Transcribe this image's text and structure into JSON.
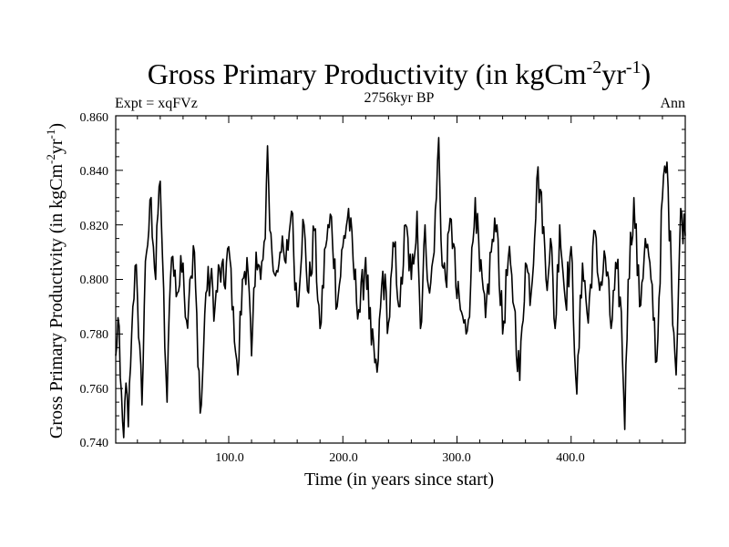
{
  "chart_data": {
    "type": "line",
    "title": "Gross Primary Productivity (in kgCm",
    "title_sup1": "-2",
    "title_mid": "yr",
    "title_sup2": "-1",
    "title_end": ")",
    "left_label": "Expt = xqFVz",
    "center_label": "2756kyr BP",
    "right_label": "Ann",
    "xlabel": "Time (in years since start)",
    "ylabel_main": "Gross Primary Productivity (in kgCm",
    "ylabel_sup1": "-2",
    "ylabel_mid": "yr",
    "ylabel_sup2": "-1",
    "ylabel_end": ")",
    "xlim": [
      1,
      500
    ],
    "ylim": [
      0.74,
      0.86
    ],
    "xticks": [
      100,
      200,
      300,
      400
    ],
    "xtick_labels": [
      "100.0",
      "200.0",
      "300.0",
      "400.0"
    ],
    "yticks": [
      0.74,
      0.76,
      0.78,
      0.8,
      0.82,
      0.84,
      0.86
    ],
    "ytick_labels": [
      "0.740",
      "0.760",
      "0.780",
      "0.800",
      "0.820",
      "0.840",
      "0.860"
    ],
    "line_color": "#000000",
    "keypoints": [
      [
        1,
        0.772
      ],
      [
        3,
        0.786
      ],
      [
        5,
        0.764
      ],
      [
        7,
        0.748
      ],
      [
        8,
        0.742
      ],
      [
        10,
        0.762
      ],
      [
        12,
        0.746
      ],
      [
        14,
        0.768
      ],
      [
        16,
        0.79
      ],
      [
        18,
        0.805
      ],
      [
        20,
        0.794
      ],
      [
        22,
        0.776
      ],
      [
        24,
        0.754
      ],
      [
        26,
        0.79
      ],
      [
        28,
        0.81
      ],
      [
        30,
        0.818
      ],
      [
        32,
        0.83
      ],
      [
        34,
        0.812
      ],
      [
        36,
        0.8
      ],
      [
        38,
        0.824
      ],
      [
        40,
        0.836
      ],
      [
        42,
        0.808
      ],
      [
        44,
        0.775
      ],
      [
        46,
        0.755
      ],
      [
        48,
        0.79
      ],
      [
        50,
        0.808
      ],
      [
        55,
        0.795
      ],
      [
        60,
        0.806
      ],
      [
        63,
        0.785
      ],
      [
        66,
        0.8
      ],
      [
        70,
        0.81
      ],
      [
        73,
        0.768
      ],
      [
        76,
        0.754
      ],
      [
        80,
        0.795
      ],
      [
        84,
        0.8
      ],
      [
        88,
        0.79
      ],
      [
        92,
        0.804
      ],
      [
        96,
        0.798
      ],
      [
        100,
        0.812
      ],
      [
        104,
        0.79
      ],
      [
        108,
        0.765
      ],
      [
        112,
        0.8
      ],
      [
        116,
        0.808
      ],
      [
        120,
        0.772
      ],
      [
        124,
        0.81
      ],
      [
        128,
        0.8
      ],
      [
        132,
        0.815
      ],
      [
        134,
        0.849
      ],
      [
        136,
        0.818
      ],
      [
        140,
        0.802
      ],
      [
        145,
        0.81
      ],
      [
        150,
        0.806
      ],
      [
        155,
        0.825
      ],
      [
        160,
        0.79
      ],
      [
        165,
        0.822
      ],
      [
        170,
        0.795
      ],
      [
        175,
        0.818
      ],
      [
        180,
        0.782
      ],
      [
        185,
        0.812
      ],
      [
        190,
        0.823
      ],
      [
        195,
        0.79
      ],
      [
        200,
        0.812
      ],
      [
        205,
        0.826
      ],
      [
        210,
        0.8
      ],
      [
        215,
        0.788
      ],
      [
        220,
        0.808
      ],
      [
        225,
        0.776
      ],
      [
        230,
        0.766
      ],
      [
        235,
        0.803
      ],
      [
        240,
        0.784
      ],
      [
        245,
        0.812
      ],
      [
        250,
        0.79
      ],
      [
        255,
        0.82
      ],
      [
        260,
        0.8
      ],
      [
        265,
        0.825
      ],
      [
        268,
        0.782
      ],
      [
        272,
        0.82
      ],
      [
        276,
        0.795
      ],
      [
        280,
        0.81
      ],
      [
        284,
        0.852
      ],
      [
        287,
        0.805
      ],
      [
        290,
        0.8
      ],
      [
        295,
        0.822
      ],
      [
        300,
        0.793
      ],
      [
        304,
        0.788
      ],
      [
        308,
        0.78
      ],
      [
        312,
        0.798
      ],
      [
        316,
        0.83
      ],
      [
        320,
        0.803
      ],
      [
        325,
        0.786
      ],
      [
        330,
        0.81
      ],
      [
        335,
        0.82
      ],
      [
        340,
        0.78
      ],
      [
        345,
        0.808
      ],
      [
        350,
        0.79
      ],
      [
        355,
        0.763
      ],
      [
        360,
        0.806
      ],
      [
        365,
        0.795
      ],
      [
        370,
        0.837
      ],
      [
        374,
        0.832
      ],
      [
        378,
        0.8
      ],
      [
        382,
        0.815
      ],
      [
        386,
        0.782
      ],
      [
        390,
        0.82
      ],
      [
        395,
        0.792
      ],
      [
        400,
        0.812
      ],
      [
        405,
        0.758
      ],
      [
        410,
        0.806
      ],
      [
        415,
        0.784
      ],
      [
        420,
        0.818
      ],
      [
        425,
        0.796
      ],
      [
        430,
        0.808
      ],
      [
        435,
        0.782
      ],
      [
        440,
        0.804
      ],
      [
        444,
        0.788
      ],
      [
        447,
        0.745
      ],
      [
        450,
        0.8
      ],
      [
        455,
        0.83
      ],
      [
        460,
        0.79
      ],
      [
        465,
        0.815
      ],
      [
        470,
        0.8
      ],
      [
        475,
        0.77
      ],
      [
        480,
        0.83
      ],
      [
        484,
        0.843
      ],
      [
        488,
        0.8
      ],
      [
        492,
        0.765
      ],
      [
        496,
        0.826
      ],
      [
        500,
        0.816
      ]
    ]
  }
}
